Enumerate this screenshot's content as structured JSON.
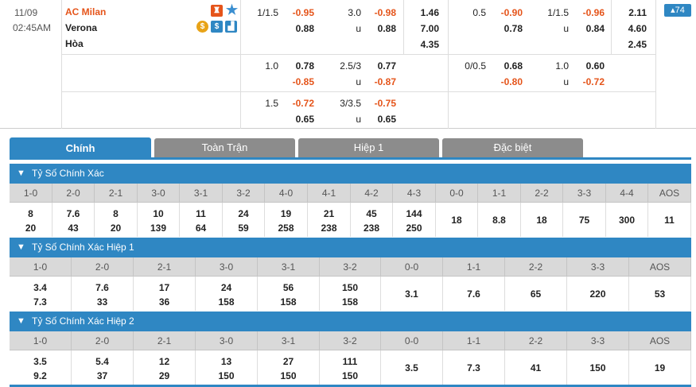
{
  "match": {
    "date": "11/09",
    "time": "02:45AM",
    "home": "AC Milan",
    "away": "Verona",
    "draw": "Hòa",
    "more_count": "74"
  },
  "icons": [
    "jersey-icon",
    "star-icon",
    "coin-icon",
    "dollar-icon",
    "stats-icon"
  ],
  "odds": [
    {
      "ah_line": "1/1.5",
      "ah_home": "-0.95",
      "ah_away": "0.88",
      "ou_line": "3.0",
      "ou_u": "u",
      "ou_over": "-0.98",
      "ou_under": "0.88",
      "x12": [
        "1.46",
        "7.00",
        "4.35"
      ],
      "h1_ah_line": "0.5",
      "h1_ah_home": "-0.90",
      "h1_ah_away": "0.78",
      "h1_ou_line": "1/1.5",
      "h1_ou_u": "u",
      "h1_ou_over": "-0.96",
      "h1_ou_under": "0.84",
      "h1_x12": [
        "2.11",
        "4.60",
        "2.45"
      ]
    },
    {
      "ah_line": "1.0",
      "ah_home": "0.78",
      "ah_away": "-0.85",
      "ou_line": "2.5/3",
      "ou_u": "u",
      "ou_over": "0.77",
      "ou_under": "-0.87",
      "h1_ah_line": "0/0.5",
      "h1_ah_home": "0.68",
      "h1_ah_away": "-0.80",
      "h1_ou_line": "1.0",
      "h1_ou_u": "u",
      "h1_ou_over": "0.60",
      "h1_ou_under": "-0.72"
    },
    {
      "ah_line": "1.5",
      "ah_home": "-0.72",
      "ah_away": "0.65",
      "ou_line": "3/3.5",
      "ou_u": "u",
      "ou_over": "-0.75",
      "ou_under": "0.65"
    }
  ],
  "tabs": [
    "Chính",
    "Toàn Trận",
    "Hiệp 1",
    "Đặc biệt"
  ],
  "sections": [
    {
      "title": "Tỷ Số Chính Xác",
      "headers": [
        "1-0",
        "2-0",
        "2-1",
        "3-0",
        "3-1",
        "3-2",
        "4-0",
        "4-1",
        "4-2",
        "4-3",
        "0-0",
        "1-1",
        "2-2",
        "3-3",
        "4-4",
        "AOS"
      ],
      "top": [
        "8",
        "7.6",
        "8",
        "10",
        "11",
        "24",
        "19",
        "21",
        "45",
        "144"
      ],
      "bottom": [
        "20",
        "43",
        "20",
        "139",
        "64",
        "59",
        "258",
        "238",
        "238",
        "250"
      ],
      "single": [
        "18",
        "8.8",
        "18",
        "75",
        "300",
        "11"
      ]
    },
    {
      "title": "Tỷ Số Chính Xác Hiệp 1",
      "headers": [
        "1-0",
        "2-0",
        "2-1",
        "3-0",
        "3-1",
        "3-2",
        "0-0",
        "1-1",
        "2-2",
        "3-3",
        "AOS"
      ],
      "top": [
        "3.4",
        "7.6",
        "17",
        "24",
        "56",
        "150"
      ],
      "bottom": [
        "7.3",
        "33",
        "36",
        "158",
        "158",
        "158"
      ],
      "single": [
        "3.1",
        "7.6",
        "65",
        "220",
        "53"
      ]
    },
    {
      "title": "Tỷ Số Chính Xác Hiệp 2",
      "headers": [
        "1-0",
        "2-0",
        "2-1",
        "3-0",
        "3-1",
        "3-2",
        "0-0",
        "1-1",
        "2-2",
        "3-3",
        "AOS"
      ],
      "top": [
        "3.5",
        "5.4",
        "12",
        "13",
        "27",
        "111"
      ],
      "bottom": [
        "9.2",
        "37",
        "29",
        "150",
        "150",
        "150"
      ],
      "single": [
        "3.5",
        "7.3",
        "41",
        "150",
        "19"
      ]
    }
  ],
  "colors": {
    "accent": "#2f87c3",
    "negative": "#e5541a",
    "tab_inactive": "#8c8c8c"
  }
}
